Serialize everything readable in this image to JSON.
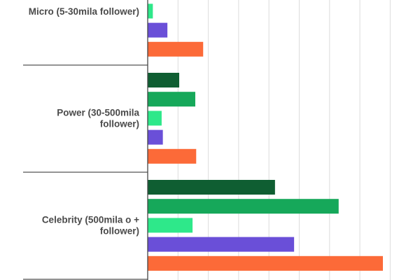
{
  "chart_data": {
    "type": "bar",
    "orientation": "horizontal",
    "categories": [
      "Micro (5-30mila follower)",
      "Power (30-500mila follower)",
      "Celebrity (500mila o + follower)"
    ],
    "category_lines": [
      [
        "Micro (5-30mila follower)"
      ],
      [
        "Power (30-500mila",
        "follower)"
      ],
      [
        "Celebrity (500mila o +",
        "follower)"
      ]
    ],
    "series": [
      {
        "color": "#0f5e32",
        "values": [
          null,
          1.04,
          4.2
        ]
      },
      {
        "color": "#16a85a",
        "values": [
          null,
          1.57,
          6.3
        ]
      },
      {
        "color": "#2ee88a",
        "values": [
          0.17,
          0.46,
          1.48
        ]
      },
      {
        "color": "#6a4fd8",
        "values": [
          0.65,
          0.5,
          4.83
        ]
      },
      {
        "color": "#fc6a38",
        "values": [
          1.83,
          1.6,
          7.76
        ]
      }
    ],
    "xlim": [
      0,
      9
    ],
    "grid": true,
    "note_units": "gridline intervals (no tick labels visible)"
  }
}
